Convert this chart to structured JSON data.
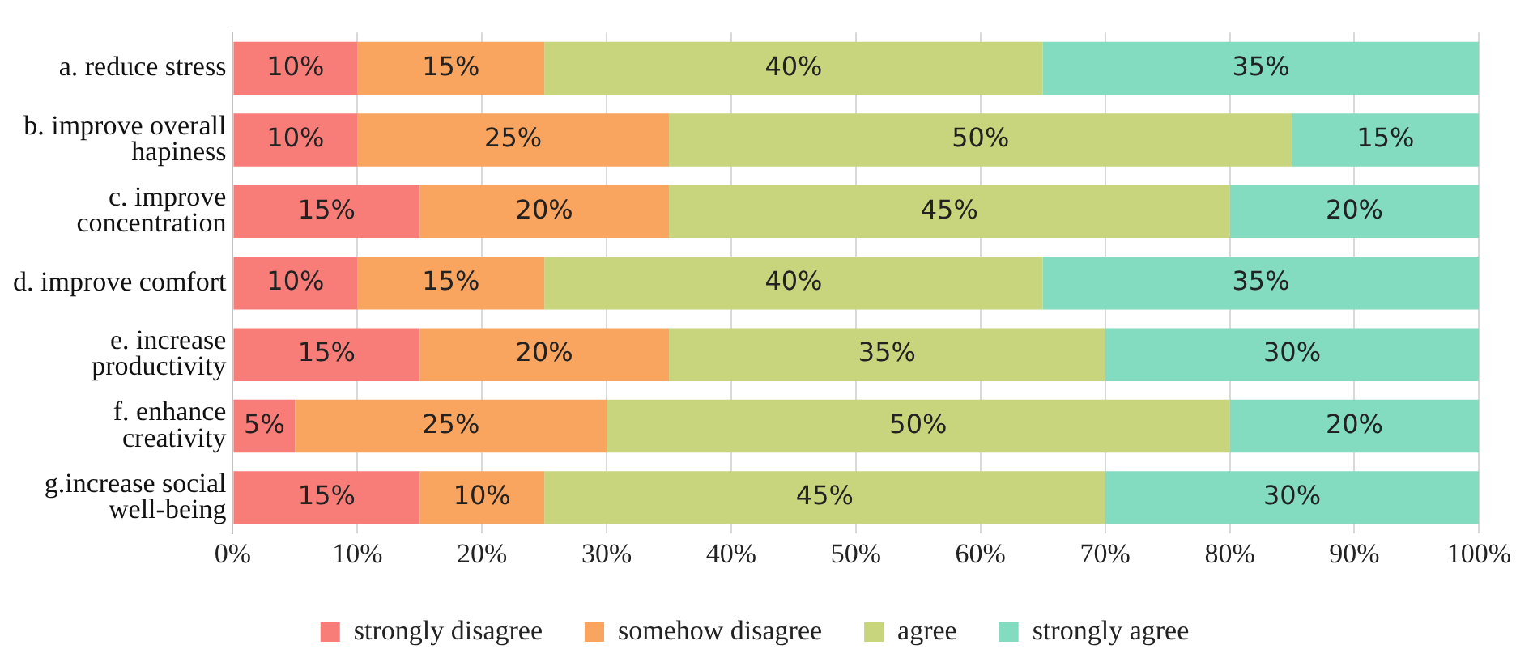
{
  "chart_data": {
    "type": "bar",
    "orientation": "horizontal",
    "stacked": true,
    "categories": [
      "a. reduce stress",
      "b. improve overall hapiness",
      "c. improve concentration",
      "d. improve comfort",
      "e. increase productivity",
      "f. enhance creativity",
      "g.increase social well-being"
    ],
    "series": [
      {
        "name": "strongly disagree",
        "color": "#f87c78",
        "values": [
          10,
          10,
          15,
          10,
          15,
          5,
          15
        ],
        "value_labels": [
          "10%",
          "10%",
          "15%",
          "10%",
          "15%",
          "5%",
          "15%"
        ]
      },
      {
        "name": "somehow disagree",
        "color": "#f9a45f",
        "values": [
          15,
          25,
          20,
          15,
          20,
          25,
          10
        ],
        "value_labels": [
          "15%",
          "25%",
          "20%",
          "15%",
          "20%",
          "25%",
          "10%"
        ]
      },
      {
        "name": "agree",
        "color": "#c8d57d",
        "values": [
          40,
          50,
          45,
          40,
          35,
          50,
          45
        ],
        "value_labels": [
          "40%",
          "50%",
          "45%",
          "40%",
          "35%",
          "50%",
          "45%"
        ]
      },
      {
        "name": "strongly agree",
        "color": "#83dbc0",
        "values": [
          35,
          15,
          20,
          35,
          30,
          20,
          30
        ],
        "value_labels": [
          "35%",
          "15%",
          "20%",
          "35%",
          "30%",
          "20%",
          "30%"
        ]
      }
    ],
    "xlim": [
      0,
      100
    ],
    "xticks": [
      {
        "value": 0,
        "label": "0%"
      },
      {
        "value": 10,
        "label": "10%"
      },
      {
        "value": 20,
        "label": "20%"
      },
      {
        "value": 30,
        "label": "30%"
      },
      {
        "value": 40,
        "label": "40%"
      },
      {
        "value": 50,
        "label": "50%"
      },
      {
        "value": 60,
        "label": "60%"
      },
      {
        "value": 70,
        "label": "70%"
      },
      {
        "value": 80,
        "label": "80%"
      },
      {
        "value": 90,
        "label": "90%"
      },
      {
        "value": 100,
        "label": "100%"
      }
    ],
    "grid": "x",
    "legend": "bottom"
  }
}
